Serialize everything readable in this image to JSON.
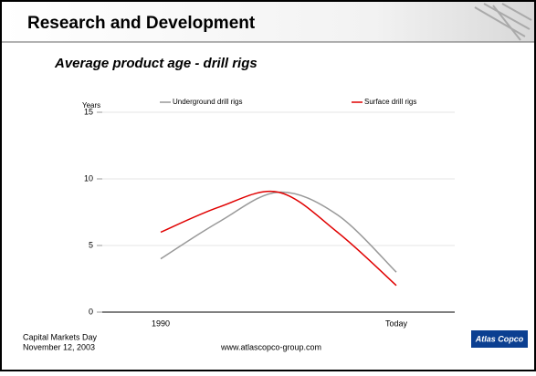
{
  "header": {
    "title": "Research and Development"
  },
  "chart_data": {
    "type": "line",
    "title": "Average product age - drill rigs",
    "y_label": "Years",
    "categories": [
      "1990",
      null,
      null,
      null,
      "Today"
    ],
    "series": [
      {
        "name": "Underground drill rigs",
        "color": "#999999",
        "values": [
          4,
          6.8,
          9,
          7.3,
          3
        ]
      },
      {
        "name": "Surface drill rigs",
        "color": "#e00000",
        "values": [
          6,
          7.9,
          9,
          6,
          2
        ]
      }
    ],
    "ylim": [
      0,
      15
    ],
    "yticks": [
      0,
      5,
      10,
      15
    ],
    "grid": true,
    "smooth": true
  },
  "footer": {
    "event": "Capital Markets Day",
    "date": "November 12, 2003",
    "url": "www.atlascopco-group.com",
    "logo": "Atlas Copco"
  }
}
